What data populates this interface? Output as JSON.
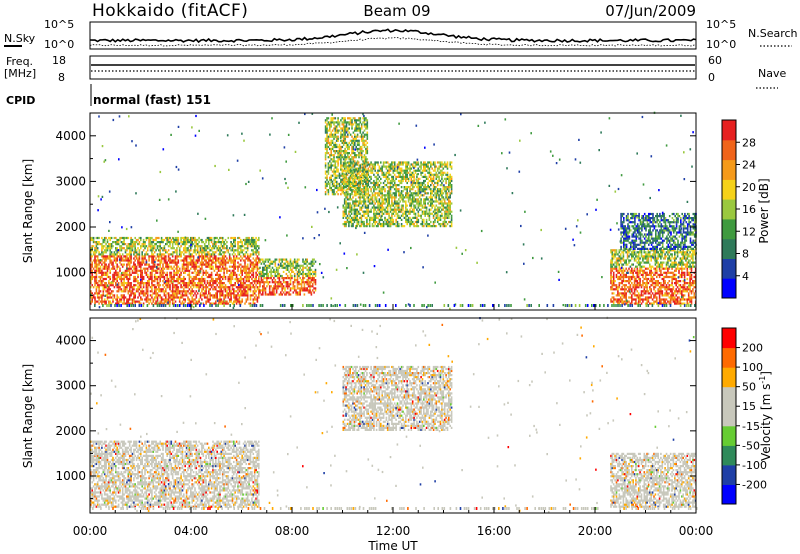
{
  "header": {
    "site": "Hokkaido (fitACF)",
    "beam": "Beam 09",
    "date": "07/Jun/2009"
  },
  "strip": {
    "nsky_label": "N.Sky",
    "nsearch_label": "N.Search",
    "freq_label_1": "Freq.",
    "freq_label_2": "[MHz]",
    "nave_label": "Nave",
    "cpid_label": "CPID",
    "cpid_value": "normal (fast) 151",
    "noise_ticks": [
      "10^5",
      "10^0"
    ],
    "noise_ticks_right": [
      "10^5",
      "10^0"
    ],
    "freq_ticks": [
      "18",
      "8"
    ],
    "nave_ticks": [
      "60",
      "0"
    ]
  },
  "colors": {
    "power": [
      "#0000ff",
      "#1f3fa6",
      "#2f7a5a",
      "#3f9a3f",
      "#9ac83f",
      "#f5d21a",
      "#f59a1a",
      "#f0641a",
      "#e62020"
    ],
    "velocity": [
      "#ff0000",
      "#ff6a00",
      "#ffaa00",
      "#c8c8bc",
      "#c8c8bc",
      "#66cc33",
      "#2f8a5a",
      "#1f3fa6",
      "#0000ff"
    ],
    "gray": "#c8c8bc"
  },
  "chart_data": [
    {
      "type": "heatmap",
      "title": "",
      "xlabel": "",
      "ylabel": "Slant Range [km]",
      "xlim": [
        "00:00",
        "24:00"
      ],
      "ylim": [
        180,
        4500
      ],
      "y_ticks": [
        "1000",
        "2000",
        "3000",
        "4000"
      ],
      "colorbar": {
        "label": "Power [dB]",
        "ticks": [
          "4",
          "8",
          "12",
          "16",
          "20",
          "24",
          "28"
        ],
        "range": [
          0,
          30
        ]
      },
      "regions": [
        {
          "t0": 0.0,
          "t1": 6.7,
          "r0": 300,
          "r1": 1750,
          "level": "high"
        },
        {
          "t0": 6.7,
          "t1": 8.9,
          "r0": 500,
          "r1": 1300,
          "level": "high"
        },
        {
          "t0": 10.0,
          "t1": 14.3,
          "r0": 2000,
          "r1": 3400,
          "level": "medium"
        },
        {
          "t0": 9.3,
          "t1": 11.0,
          "r0": 2700,
          "r1": 4400,
          "level": "medium"
        },
        {
          "t0": 20.6,
          "t1": 24.0,
          "r0": 300,
          "r1": 1500,
          "level": "high"
        },
        {
          "t0": 21.0,
          "t1": 24.0,
          "r0": 1500,
          "r1": 2300,
          "level": "low"
        }
      ]
    },
    {
      "type": "heatmap",
      "title": "",
      "xlabel": "Time UT",
      "ylabel": "Slant Range [km]",
      "xlim": [
        "00:00",
        "24:00"
      ],
      "ylim": [
        180,
        4500
      ],
      "x_ticks": [
        "00:00",
        "04:00",
        "08:00",
        "12:00",
        "16:00",
        "20:00",
        "00:00"
      ],
      "y_ticks": [
        "1000",
        "2000",
        "3000",
        "4000"
      ],
      "colorbar": {
        "label": "Velocity [m s^-1]",
        "label_text": "Velocity [m s",
        "label_sup": "-1",
        "label_close": "]",
        "ticks": [
          "200",
          "100",
          "50",
          "15",
          "-15",
          "-50",
          "-100",
          "-200"
        ],
        "range": [
          -250,
          250
        ]
      },
      "regions": [
        {
          "t0": 0.0,
          "t1": 6.7,
          "r0": 300,
          "r1": 1750,
          "level": "near-zero"
        },
        {
          "t0": 10.0,
          "t1": 14.3,
          "r0": 2000,
          "r1": 3400,
          "level": "near-zero"
        },
        {
          "t0": 20.6,
          "t1": 24.0,
          "r0": 300,
          "r1": 1500,
          "level": "near-zero"
        }
      ]
    }
  ]
}
